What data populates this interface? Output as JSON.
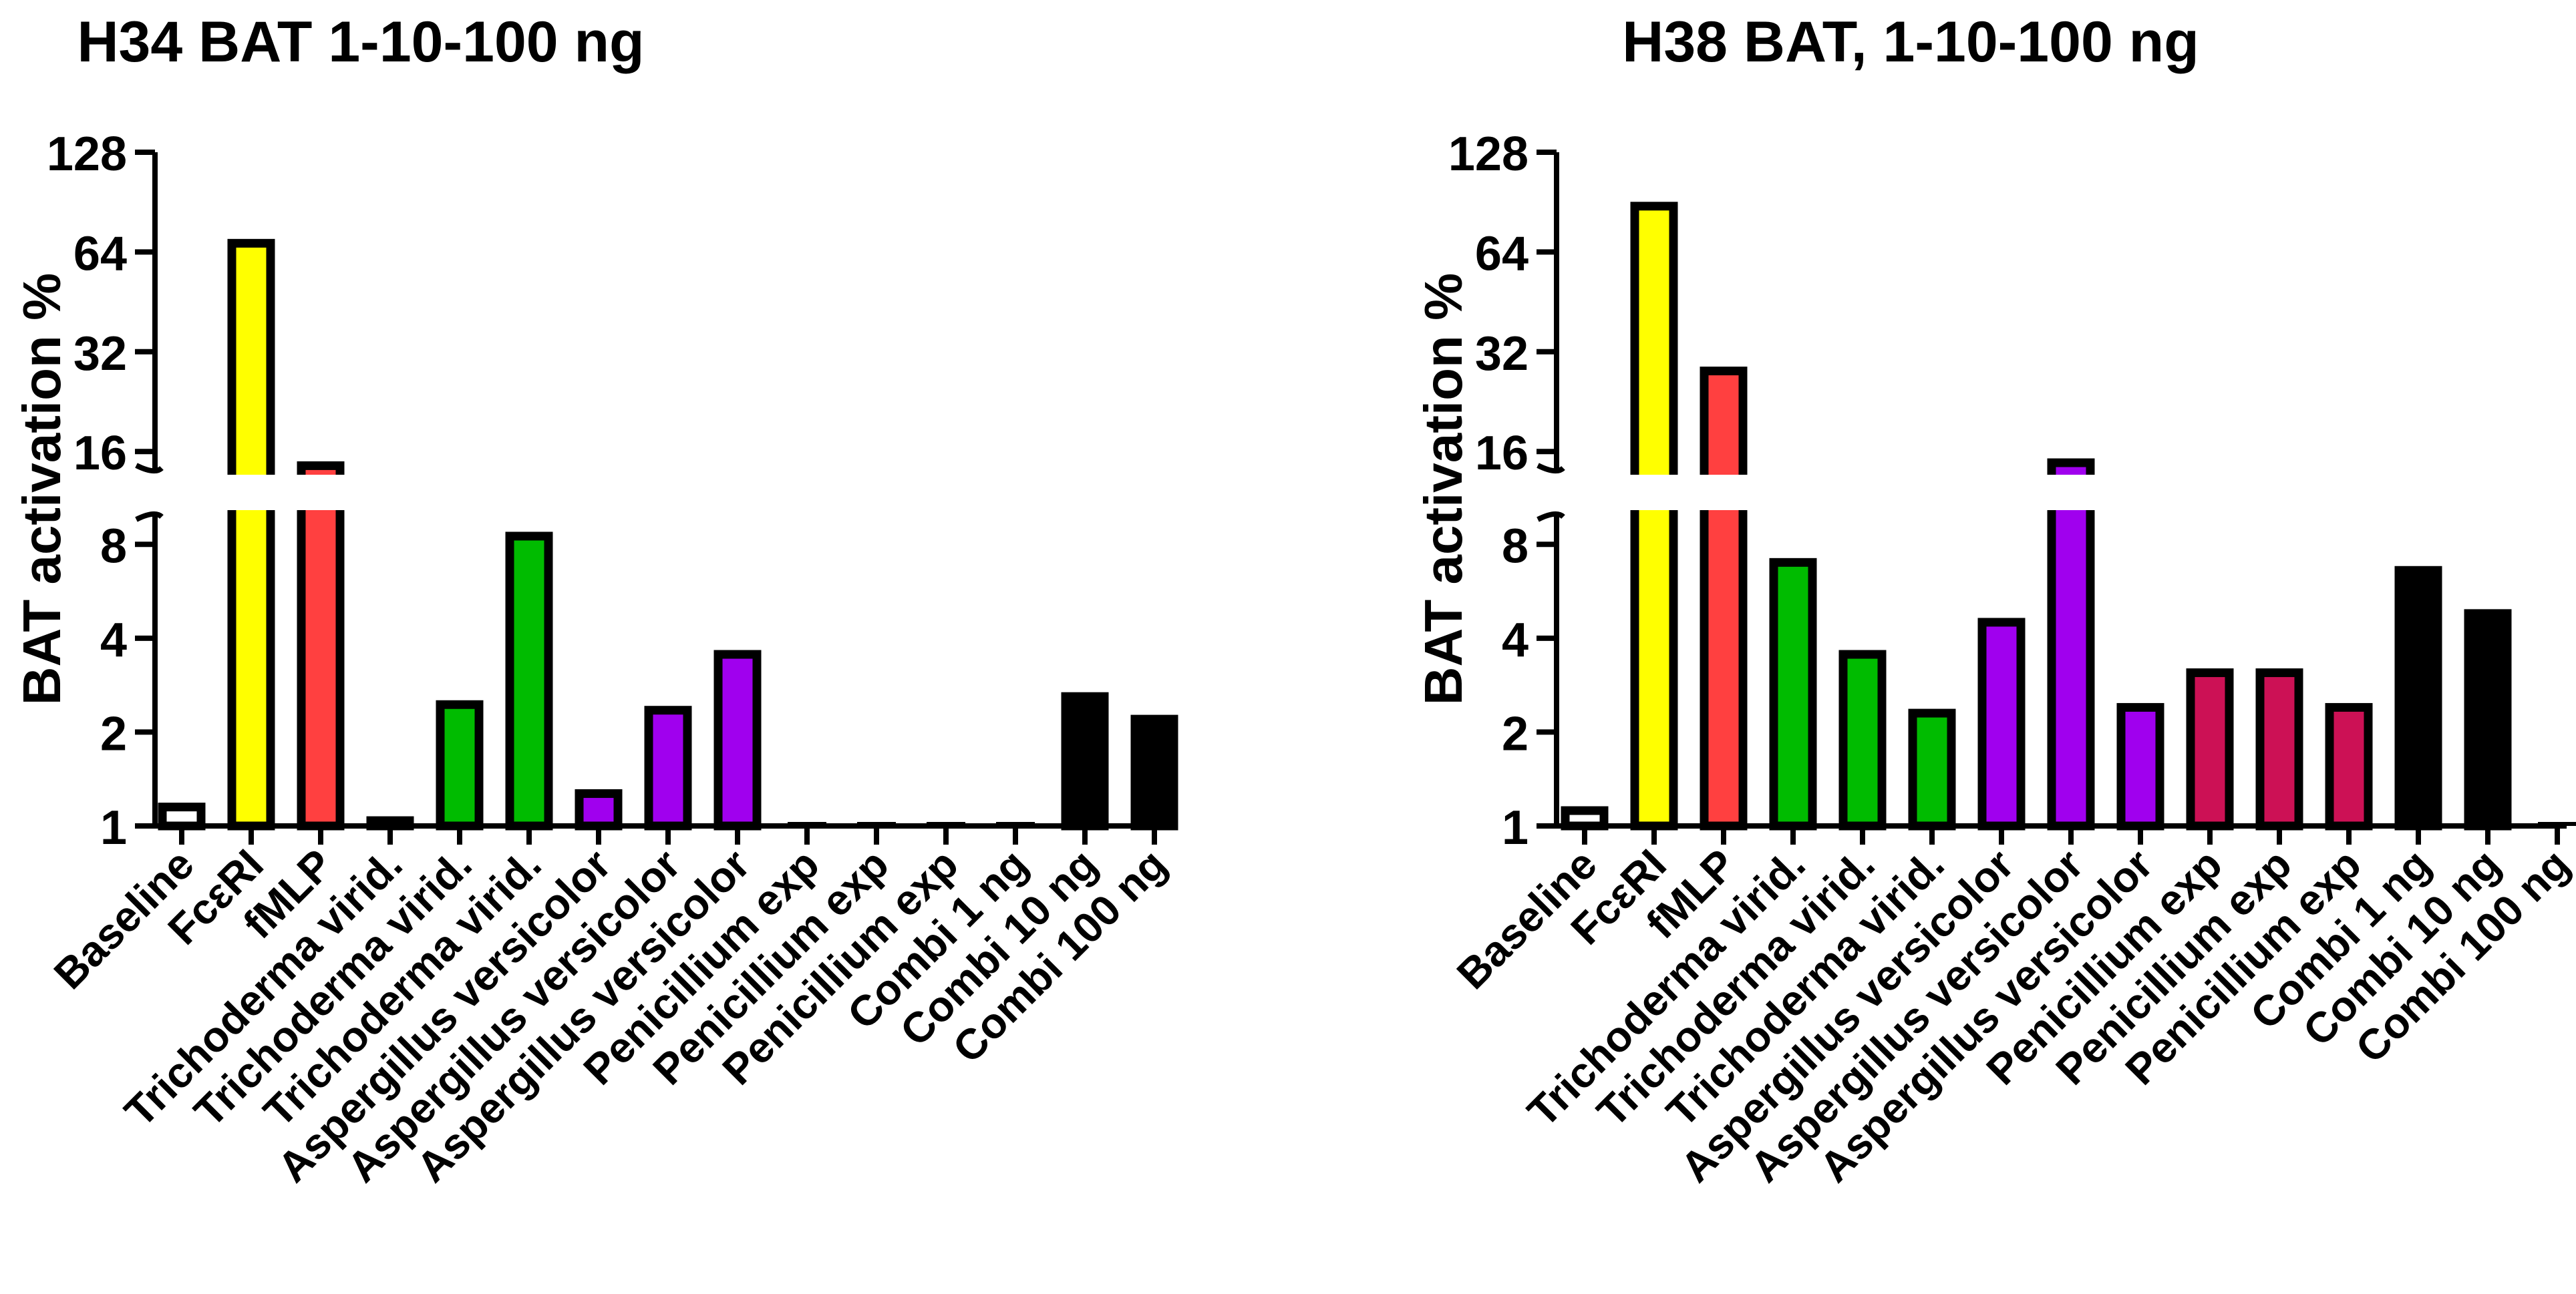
{
  "chart_data": [
    {
      "type": "bar",
      "title": "H34 BAT 1-10-100 ng",
      "ylabel": "BAT activation %",
      "xlabel": "",
      "yscale": "log2-broken",
      "ylim": [
        1,
        128
      ],
      "axis_break": [
        10,
        14
      ],
      "yticks": [
        "1",
        "2",
        "4",
        "8",
        "16",
        "32",
        "64",
        "128"
      ],
      "categories": [
        "Baseline",
        "FcεRI",
        "fMLP",
        "Trichoderma virid.",
        "Trichoderma virid.",
        "Trichoderma virid.",
        "Aspergillus versicolor",
        "Aspergillus versicolor",
        "Aspergillus versicolor",
        "Penicillium exp",
        "Penicillium exp",
        "Penicillium exp",
        "Combi 1 ng",
        "Combi 10 ng",
        "Combi 100 ng"
      ],
      "values": [
        1.15,
        68,
        14.5,
        1.04,
        2.45,
        8.5,
        1.27,
        2.35,
        3.55,
        1.0,
        1.0,
        1.0,
        1.0,
        2.6,
        2.2
      ],
      "bar_fill": [
        "#ffffff",
        "#ffff00",
        "#ff4040",
        "#00bb00",
        "#00bb00",
        "#00bb00",
        "#a000ee",
        "#a000ee",
        "#a000ee",
        "#cc1155",
        "#cc1155",
        "#cc1155",
        "#000000",
        "#000000",
        "#000000"
      ]
    },
    {
      "type": "bar",
      "title": "H38 BAT, 1-10-100 ng",
      "ylabel": "BAT activation %",
      "xlabel": "",
      "yscale": "log2-broken",
      "ylim": [
        1,
        128
      ],
      "axis_break": [
        10,
        14
      ],
      "yticks": [
        "1",
        "2",
        "4",
        "8",
        "16",
        "32",
        "64",
        "128"
      ],
      "categories": [
        "Baseline",
        "FcεRI",
        "fMLP",
        "Trichoderma virid.",
        "Trichoderma virid.",
        "Trichoderma virid.",
        "Aspergillus versicolor",
        "Aspergillus versicolor",
        "Aspergillus versicolor",
        "Penicillium exp",
        "Penicillium exp",
        "Penicillium exp",
        "Combi 1 ng",
        "Combi 10 ng",
        "Combi 100 ng"
      ],
      "values": [
        1.12,
        88,
        28,
        7.0,
        3.55,
        2.3,
        4.5,
        14.8,
        2.4,
        3.1,
        3.1,
        2.4,
        6.6,
        4.8,
        1.0
      ],
      "bar_fill": [
        "#ffffff",
        "#ffff00",
        "#ff4040",
        "#00bb00",
        "#00bb00",
        "#00bb00",
        "#a000ee",
        "#a000ee",
        "#a000ee",
        "#cc1155",
        "#cc1155",
        "#cc1155",
        "#000000",
        "#000000",
        "#000000"
      ]
    }
  ]
}
